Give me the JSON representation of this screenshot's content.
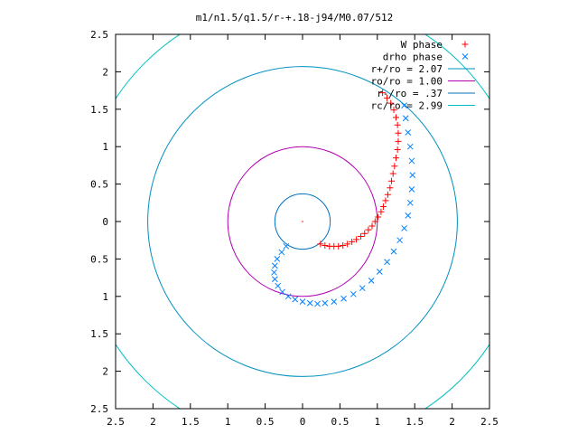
{
  "chart_data": {
    "type": "scatter",
    "title": "m1/n1.5/q1.5/r-+.18-j94/M0.07/512",
    "xlabel": "",
    "ylabel": "",
    "xlim": [
      -2.5,
      2.5
    ],
    "ylim": [
      -2.5,
      2.5
    ],
    "x_ticks": [
      -2.5,
      -2,
      -1.5,
      -1,
      -0.5,
      0,
      0.5,
      1,
      1.5,
      2,
      2.5
    ],
    "y_ticks": [
      -2.5,
      -2,
      -1.5,
      -1,
      -0.5,
      0,
      0.5,
      1,
      1.5,
      2,
      2.5
    ],
    "x_tick_labels": [
      "2.5",
      "2",
      "1.5",
      "1",
      "0.5",
      "0",
      "0.5",
      "1",
      "1.5",
      "2",
      "2.5"
    ],
    "y_tick_labels": [
      "2.5",
      "2",
      "1.5",
      "1",
      "0.5",
      "0",
      "0.5",
      "1",
      "1.5",
      "2",
      "2.5"
    ],
    "grid": false,
    "legend_position": "top-right",
    "series": [
      {
        "name": "W phase",
        "marker": "+",
        "color": "#ff0000",
        "x": [
          0.24,
          0.3,
          0.36,
          0.42,
          0.48,
          0.54,
          0.6,
          0.66,
          0.72,
          0.78,
          0.83,
          0.88,
          0.93,
          0.97,
          1.01,
          1.05,
          1.08,
          1.11,
          1.14,
          1.17,
          1.19,
          1.21,
          1.23,
          1.25,
          1.27,
          1.28,
          1.28,
          1.27,
          1.25,
          1.22,
          1.18,
          1.13,
          1.07
        ],
        "y": [
          -0.3,
          -0.32,
          -0.33,
          -0.33,
          -0.33,
          -0.32,
          -0.3,
          -0.27,
          -0.24,
          -0.2,
          -0.16,
          -0.11,
          -0.06,
          0.0,
          0.06,
          0.13,
          0.2,
          0.28,
          0.36,
          0.45,
          0.54,
          0.64,
          0.74,
          0.85,
          0.96,
          1.07,
          1.18,
          1.29,
          1.39,
          1.49,
          1.58,
          1.65,
          1.72
        ]
      },
      {
        "name": "drho phase",
        "marker": "x",
        "color": "#0080ff",
        "x": [
          -0.22,
          -0.28,
          -0.34,
          -0.37,
          -0.38,
          -0.37,
          -0.33,
          -0.27,
          -0.19,
          -0.1,
          0.0,
          0.1,
          0.2,
          0.3,
          0.42,
          0.55,
          0.68,
          0.8,
          0.92,
          1.03,
          1.13,
          1.22,
          1.3,
          1.36,
          1.41,
          1.44,
          1.46,
          1.47,
          1.46,
          1.44,
          1.41,
          1.38,
          1.36
        ],
        "y": [
          -0.33,
          -0.41,
          -0.5,
          -0.59,
          -0.68,
          -0.77,
          -0.86,
          -0.94,
          -1.0,
          -1.04,
          -1.07,
          -1.09,
          -1.1,
          -1.09,
          -1.07,
          -1.03,
          -0.97,
          -0.89,
          -0.79,
          -0.67,
          -0.54,
          -0.4,
          -0.25,
          -0.09,
          0.08,
          0.25,
          0.43,
          0.62,
          0.81,
          1.0,
          1.19,
          1.38,
          1.55
        ]
      }
    ],
    "circles": [
      {
        "name": "r+/ro = 2.07",
        "radius": 2.07,
        "color": "#0090c0"
      },
      {
        "name": "ro/ro = 1.00",
        "radius": 1.0,
        "color": "#b000b0"
      },
      {
        "name": "r-/ro = .37",
        "radius": 0.37,
        "color": "#0070c0"
      },
      {
        "name": "rc/ro = 2.99",
        "radius": 2.99,
        "color": "#00c0c0"
      }
    ],
    "center_point": [
      0,
      0
    ]
  }
}
